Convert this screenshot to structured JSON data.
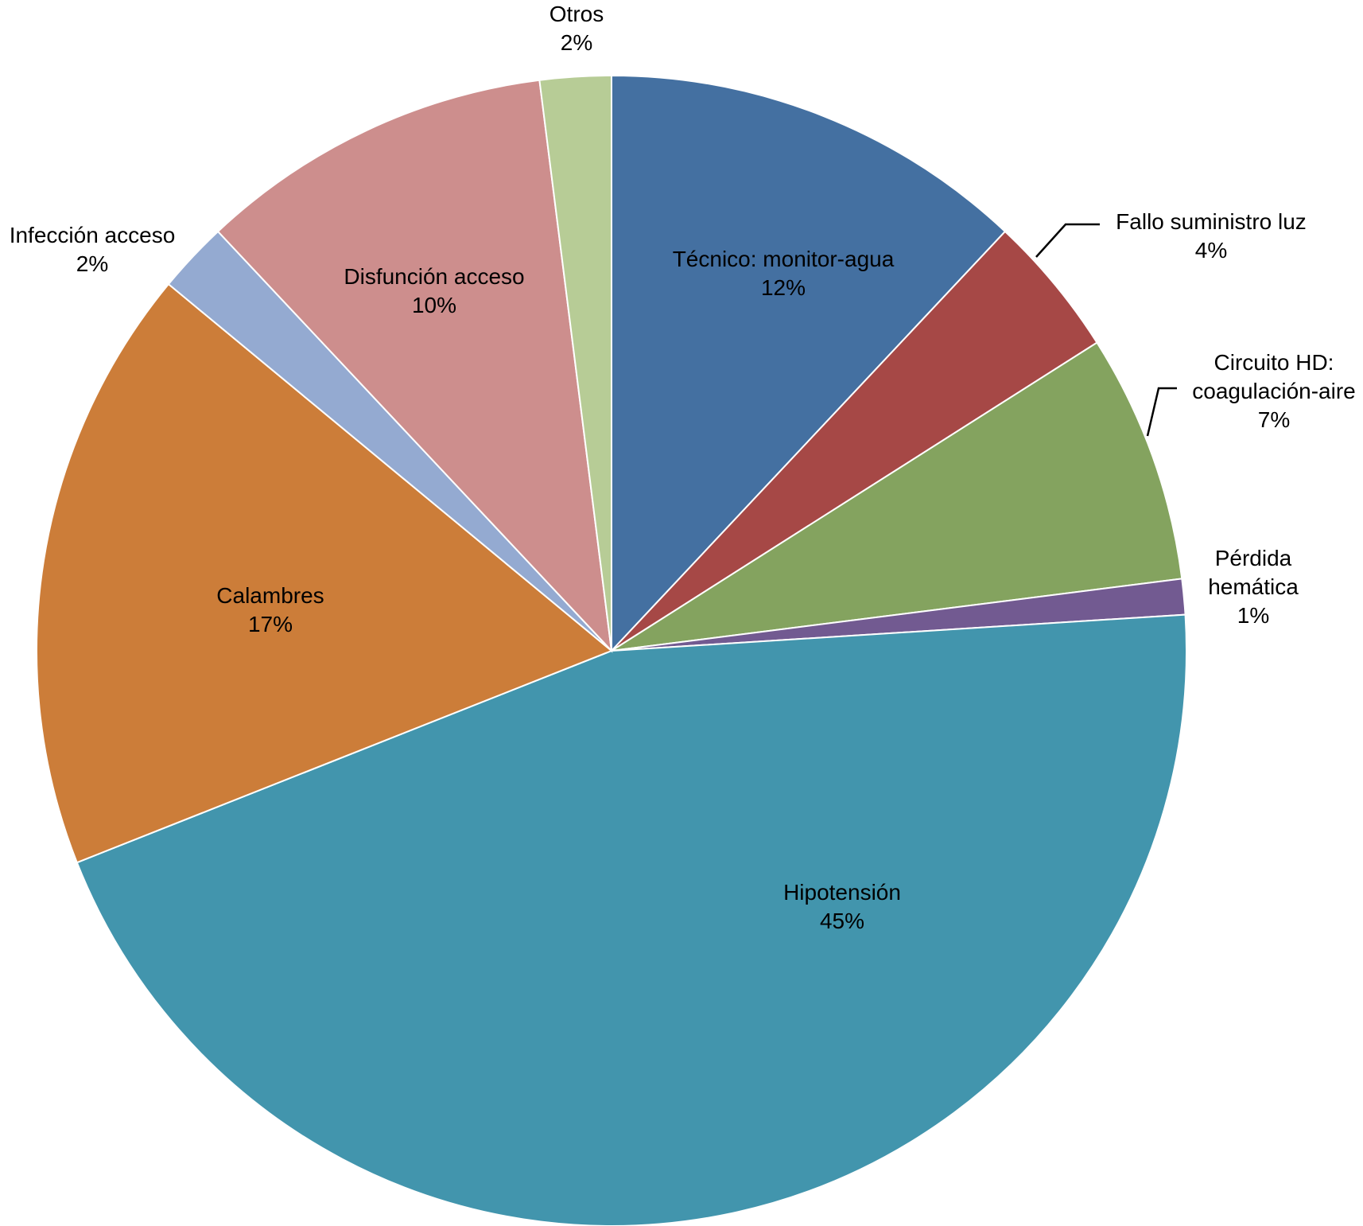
{
  "chart_data": {
    "type": "pie",
    "title": "",
    "start_angle_deg": 0,
    "direction": "clockwise",
    "slices": [
      {
        "label": "Técnico: monitor-agua",
        "value": 12,
        "label_text": "12%",
        "color": "#4470A1"
      },
      {
        "label": "Fallo suministro luz",
        "value": 4,
        "label_text": "4%",
        "color": "#A64846"
      },
      {
        "label": "Circuito HD: coagulación-aire",
        "label_lines": [
          "Circuito HD:",
          "coagulación-aire"
        ],
        "value": 7,
        "label_text": "7%",
        "color": "#84A35F"
      },
      {
        "label": "Pérdida hemática",
        "label_lines": [
          "Pérdida",
          "hemática"
        ],
        "value": 1,
        "label_text": "1%",
        "color": "#725A91"
      },
      {
        "label": "Hipotensión",
        "value": 45,
        "label_text": "45%",
        "color": "#4295AD"
      },
      {
        "label": "Calambres",
        "value": 17,
        "label_text": "17%",
        "color": "#CC7D39"
      },
      {
        "label": "Infección acceso",
        "value": 2,
        "label_text": "2%",
        "color": "#94AAD1"
      },
      {
        "label": "Disfunción acceso",
        "value": 10,
        "label_text": "10%",
        "color": "#CD8E8D"
      },
      {
        "label": "Otros",
        "value": 2,
        "label_text": "2%",
        "color": "#B7CC96"
      }
    ]
  }
}
